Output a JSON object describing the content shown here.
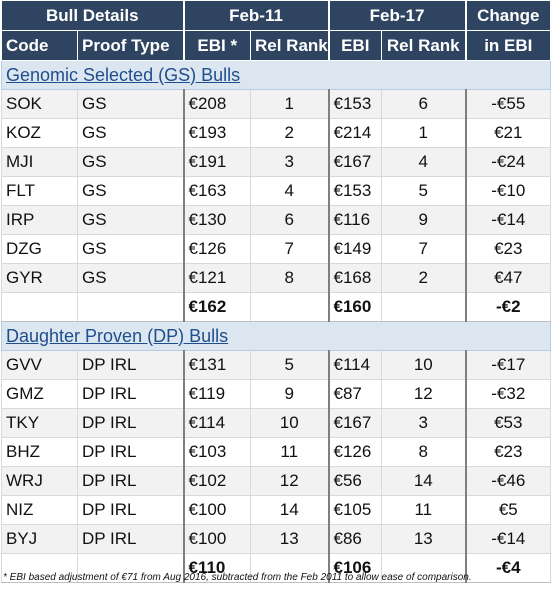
{
  "header": {
    "group1": "Bull Details",
    "group2": "Feb-11",
    "group3": "Feb-17",
    "group4": "Change",
    "col_code": "Code",
    "col_proof": "Proof Type",
    "col_ebi11": "EBI *",
    "col_rank11": "Rel Rank",
    "col_ebi17": "EBI",
    "col_rank17": "Rel Rank",
    "col_change": "in EBI"
  },
  "sections": [
    {
      "title": "Genomic Selected (GS) Bulls",
      "rows": [
        {
          "code": "SOK",
          "proof": "GS",
          "ebi11": "€208",
          "rank11": "1",
          "ebi17": "€153",
          "rank17": "6",
          "change": "-€55"
        },
        {
          "code": "KOZ",
          "proof": "GS",
          "ebi11": "€193",
          "rank11": "2",
          "ebi17": "€214",
          "rank17": "1",
          "change": "€21"
        },
        {
          "code": "MJI",
          "proof": "GS",
          "ebi11": "€191",
          "rank11": "3",
          "ebi17": "€167",
          "rank17": "4",
          "change": "-€24"
        },
        {
          "code": "FLT",
          "proof": "GS",
          "ebi11": "€163",
          "rank11": "4",
          "ebi17": "€153",
          "rank17": "5",
          "change": "-€10"
        },
        {
          "code": "IRP",
          "proof": "GS",
          "ebi11": "€130",
          "rank11": "6",
          "ebi17": "€116",
          "rank17": "9",
          "change": "-€14"
        },
        {
          "code": "DZG",
          "proof": "GS",
          "ebi11": "€126",
          "rank11": "7",
          "ebi17": "€149",
          "rank17": "7",
          "change": "€23"
        },
        {
          "code": "GYR",
          "proof": "GS",
          "ebi11": "€121",
          "rank11": "8",
          "ebi17": "€168",
          "rank17": "2",
          "change": "€47"
        }
      ],
      "total": {
        "ebi11": "€162",
        "ebi17": "€160",
        "change": "-€2"
      }
    },
    {
      "title": "Daughter Proven (DP) Bulls",
      "rows": [
        {
          "code": "GVV",
          "proof": "DP IRL",
          "ebi11": "€131",
          "rank11": "5",
          "ebi17": "€114",
          "rank17": "10",
          "change": "-€17"
        },
        {
          "code": "GMZ",
          "proof": "DP IRL",
          "ebi11": "€119",
          "rank11": "9",
          "ebi17": "€87",
          "rank17": "12",
          "change": "-€32"
        },
        {
          "code": "TKY",
          "proof": "DP IRL",
          "ebi11": "€114",
          "rank11": "10",
          "ebi17": "€167",
          "rank17": "3",
          "change": "€53"
        },
        {
          "code": "BHZ",
          "proof": "DP IRL",
          "ebi11": "€103",
          "rank11": "11",
          "ebi17": "€126",
          "rank17": "8",
          "change": "€23"
        },
        {
          "code": "WRJ",
          "proof": "DP IRL",
          "ebi11": "€102",
          "rank11": "12",
          "ebi17": "€56",
          "rank17": "14",
          "change": "-€46"
        },
        {
          "code": "NIZ",
          "proof": "DP IRL",
          "ebi11": "€100",
          "rank11": "14",
          "ebi17": "€105",
          "rank17": "11",
          "change": "€5"
        },
        {
          "code": "BYJ",
          "proof": "DP IRL",
          "ebi11": "€100",
          "rank11": "13",
          "ebi17": "€86",
          "rank17": "13",
          "change": "-€14"
        }
      ],
      "total": {
        "ebi11": "€110",
        "ebi17": "€106",
        "change": "-€4"
      }
    }
  ],
  "footnote": "* EBI based adjustment of €71 from Aug 2016, subtracted from the Feb 2011 to allow ease of comparison.",
  "colors": {
    "header_bg": "#2f4460",
    "section_bg": "#dce6f1",
    "section_text": "#1f4e8c",
    "alt_row_bg": "#f2f2f2"
  }
}
